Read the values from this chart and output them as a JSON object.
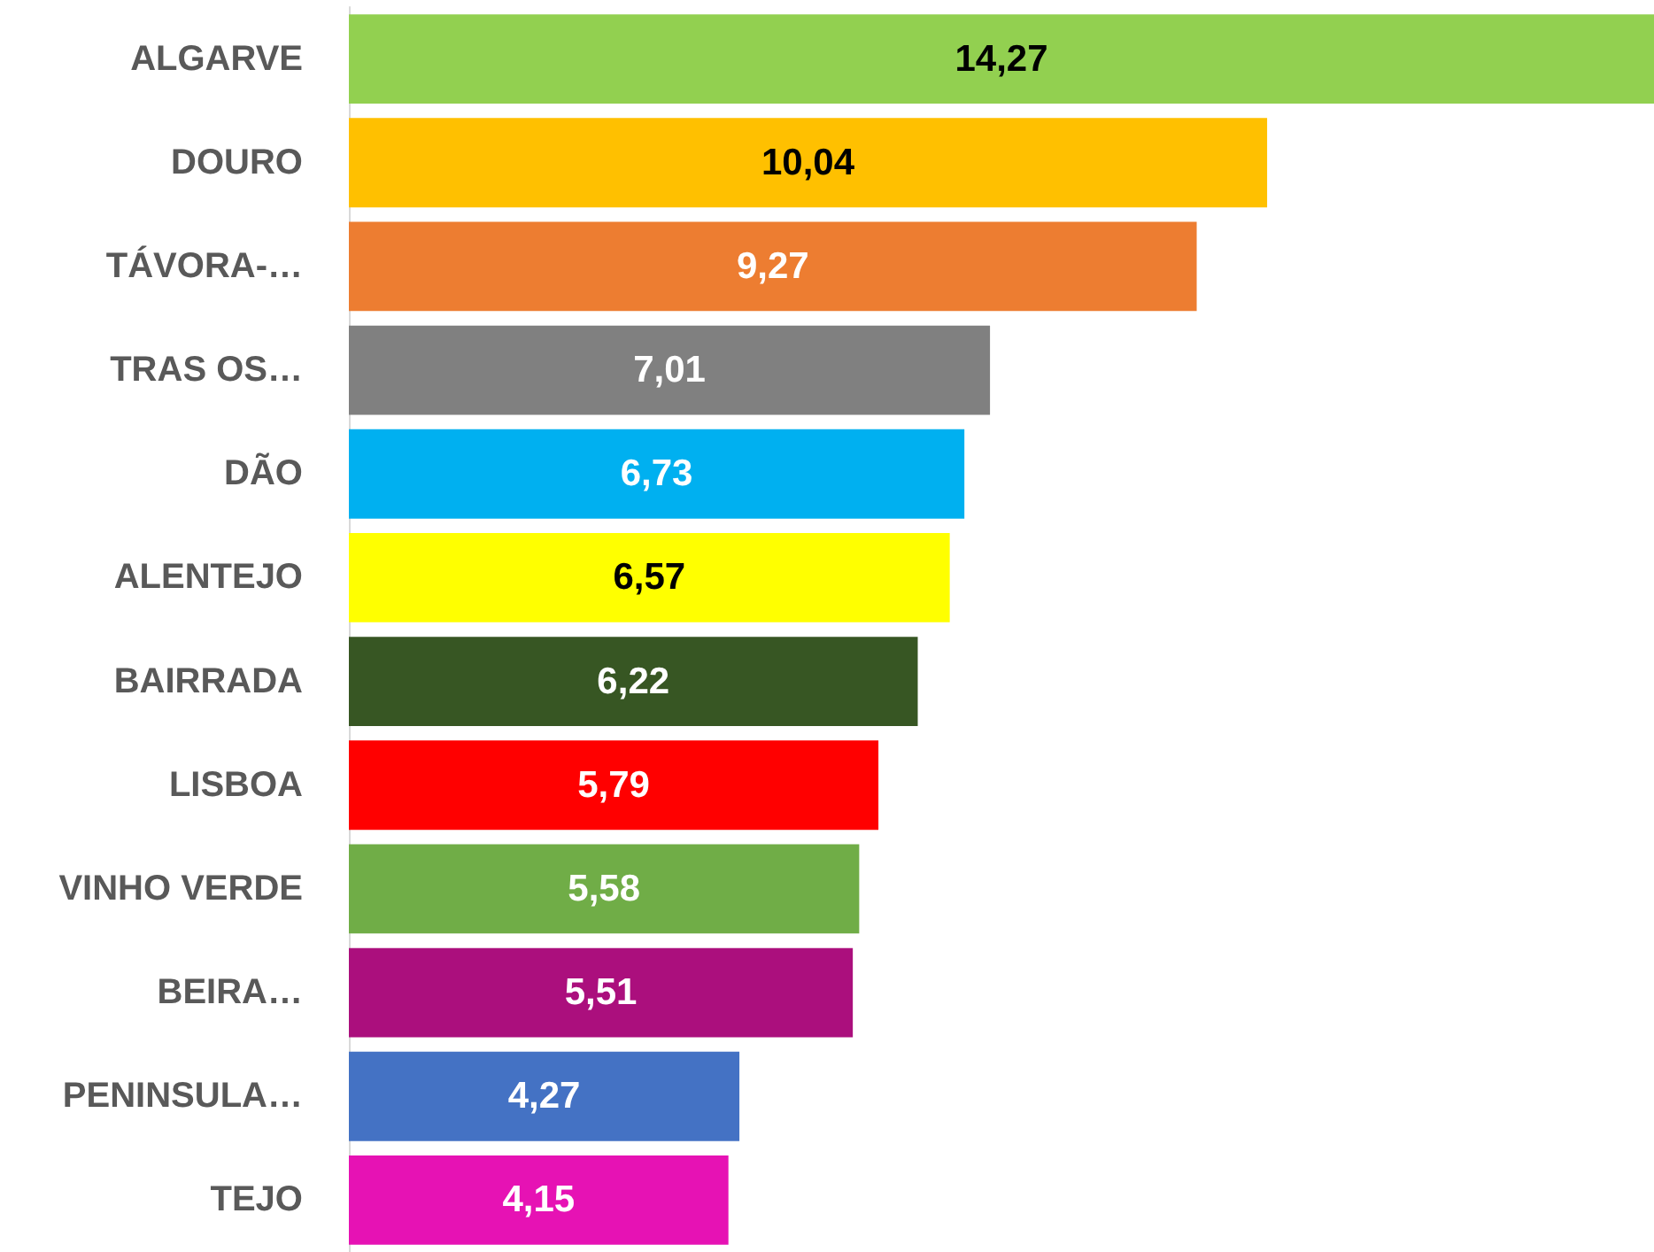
{
  "chart_data": {
    "type": "bar",
    "orientation": "horizontal",
    "categories": [
      "ALGARVE",
      "DOURO",
      "TÁVORA-…",
      "TRAS OS…",
      "DÃO",
      "ALENTEJO",
      "BAIRRADA",
      "LISBOA",
      "VINHO VERDE",
      "BEIRA…",
      "PENINSULA…",
      "TEJO"
    ],
    "values": [
      14.27,
      10.04,
      9.27,
      7.01,
      6.73,
      6.57,
      6.22,
      5.79,
      5.58,
      5.51,
      4.27,
      4.15
    ],
    "colors": [
      "#92d050",
      "#ffc000",
      "#ed7d31",
      "#808080",
      "#00b0f0",
      "#ffff00",
      "#375623",
      "#ff0000",
      "#70ad47",
      "#ab0f7d",
      "#4472c4",
      "#e612b4"
    ],
    "value_labels": [
      "14,27",
      "10,04",
      "9,27",
      "7,01",
      "6,73",
      "6,57",
      "6,22",
      "5,79",
      "5,58",
      "5,51",
      "4,27",
      "4,15"
    ]
  }
}
